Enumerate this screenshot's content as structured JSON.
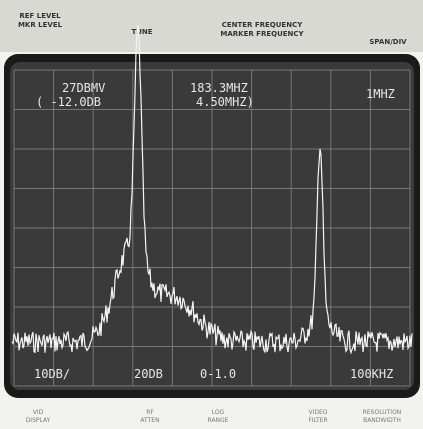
{
  "header": {
    "ref_level": "REF LEVEL",
    "mkr_level": "MKR LEVEL",
    "tune": "TUNE",
    "center_frequency": "CENTER FREQUENCY",
    "marker_frequency": "MARKER FREQUENCY",
    "span_div": "SPAN/DIV"
  },
  "screen": {
    "ref_level": "27DBMV",
    "mkr_level": "( -12.0DB",
    "center_frequency": "183.3MHZ",
    "marker_frequency": "4.50MHZ)",
    "span_div": "1MHZ",
    "scale": "10DB/",
    "rf_atten": "20DB",
    "log_range": "0-1.0",
    "resolution": "100KHZ"
  },
  "controls": {
    "display": [
      "VID",
      "DISPLAY"
    ],
    "rf_atten": [
      "RF",
      "ATTEN"
    ],
    "range": [
      "LOG",
      "RANGE"
    ],
    "video_filter": [
      "VIDEO",
      "FILTER"
    ],
    "resolution": [
      "RESOLUTION",
      "BANDWIDTH"
    ]
  }
}
